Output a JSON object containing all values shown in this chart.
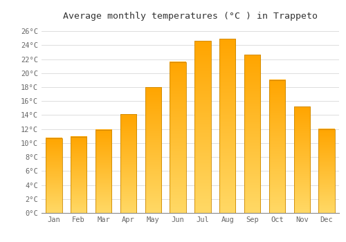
{
  "title": "Average monthly temperatures (°C ) in Trappeto",
  "months": [
    "Jan",
    "Feb",
    "Mar",
    "Apr",
    "May",
    "Jun",
    "Jul",
    "Aug",
    "Sep",
    "Oct",
    "Nov",
    "Dec"
  ],
  "temperatures": [
    10.7,
    10.9,
    11.9,
    14.1,
    18.0,
    21.6,
    24.6,
    24.9,
    22.6,
    19.0,
    15.2,
    12.0
  ],
  "bar_color_top": "#FFD966",
  "bar_color_bottom": "#FFA500",
  "bar_edge_color": "#CC8800",
  "ylim": [
    0,
    27
  ],
  "yticks": [
    0,
    2,
    4,
    6,
    8,
    10,
    12,
    14,
    16,
    18,
    20,
    22,
    24,
    26
  ],
  "background_color": "#FFFFFF",
  "grid_color": "#DDDDDD",
  "title_fontsize": 9.5,
  "tick_fontsize": 7.5,
  "title_font": "monospace",
  "tick_font": "monospace"
}
